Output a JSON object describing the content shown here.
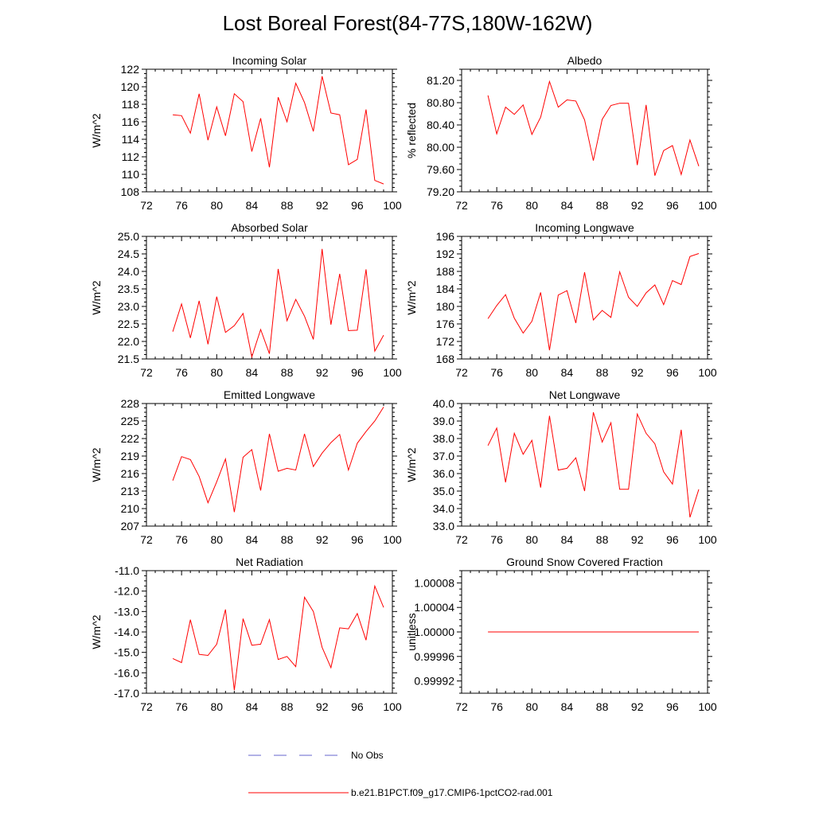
{
  "title": "Lost Boreal Forest(84-77S,180W-162W)",
  "colors": {
    "series": "#ff0000",
    "obs": "#6666cc",
    "axis": "#000000"
  },
  "legend": {
    "obs_label": "No Obs",
    "model_label": "b.e21.B1PCT.f09_g17.CMIP6-1pctCO2-rad.001"
  },
  "chart_data": [
    {
      "type": "line",
      "title": "Incoming Solar",
      "ylabel": "W/m^2",
      "xlim": [
        72,
        100
      ],
      "ylim": [
        108,
        122
      ],
      "xticks": [
        72,
        76,
        80,
        84,
        88,
        92,
        96,
        100
      ],
      "yticks": [
        "108",
        "110",
        "112",
        "114",
        "116",
        "118",
        "120",
        "122"
      ],
      "x": [
        75,
        76,
        77,
        78,
        79,
        80,
        81,
        82,
        83,
        84,
        85,
        86,
        87,
        88,
        89,
        90,
        91,
        92,
        93,
        94,
        95,
        96,
        97,
        98,
        99
      ],
      "series": [
        {
          "name": "b.e21.B1PCT.f09_g17.CMIP6-1pctCO2-rad.001",
          "values": [
            116.8,
            116.7,
            114.7,
            119.2,
            113.9,
            117.7,
            114.4,
            119.2,
            118.3,
            112.6,
            116.4,
            110.8,
            118.8,
            116.0,
            120.4,
            118.2,
            114.9,
            121.2,
            117.0,
            116.8,
            111.1,
            111.7,
            117.4,
            109.3,
            108.9
          ]
        }
      ]
    },
    {
      "type": "line",
      "title": "Albedo",
      "ylabel": "% reflected",
      "xlim": [
        72,
        100
      ],
      "ylim": [
        79.2,
        81.4
      ],
      "xticks": [
        72,
        76,
        80,
        84,
        88,
        92,
        96,
        100
      ],
      "yticks": [
        "79.20",
        "79.60",
        "80.00",
        "80.40",
        "80.80",
        "81.20"
      ],
      "x": [
        75,
        76,
        77,
        78,
        79,
        80,
        81,
        82,
        83,
        84,
        85,
        86,
        87,
        88,
        89,
        90,
        91,
        92,
        93,
        94,
        95,
        96,
        97,
        98,
        99
      ],
      "series": [
        {
          "name": "b.e21.B1PCT.f09_g17.CMIP6-1pctCO2-rad.001",
          "values": [
            80.93,
            80.24,
            80.72,
            80.59,
            80.76,
            80.23,
            80.54,
            81.18,
            80.72,
            80.85,
            80.83,
            80.49,
            79.76,
            80.5,
            80.75,
            80.79,
            80.79,
            79.68,
            80.76,
            79.49,
            79.94,
            80.03,
            79.51,
            80.13,
            79.66
          ]
        }
      ]
    },
    {
      "type": "line",
      "title": "Absorbed Solar",
      "ylabel": "W/m^2",
      "xlim": [
        72,
        100
      ],
      "ylim": [
        21.5,
        25.0
      ],
      "xticks": [
        72,
        76,
        80,
        84,
        88,
        92,
        96,
        100
      ],
      "yticks": [
        "21.5",
        "22.0",
        "22.5",
        "23.0",
        "23.5",
        "24.0",
        "24.5",
        "25.0"
      ],
      "x": [
        75,
        76,
        77,
        78,
        79,
        80,
        81,
        82,
        83,
        84,
        85,
        86,
        87,
        88,
        89,
        90,
        91,
        92,
        93,
        94,
        95,
        96,
        97,
        98,
        99
      ],
      "series": [
        {
          "name": "b.e21.B1PCT.f09_g17.CMIP6-1pctCO2-rad.001",
          "values": [
            22.28,
            23.07,
            22.1,
            23.16,
            21.92,
            23.28,
            22.26,
            22.45,
            22.8,
            21.56,
            22.34,
            21.65,
            24.07,
            22.59,
            23.2,
            22.72,
            22.06,
            24.64,
            22.48,
            23.93,
            22.31,
            22.32,
            24.06,
            21.72,
            22.18
          ]
        }
      ]
    },
    {
      "type": "line",
      "title": "Incoming Longwave",
      "ylabel": "W/m^2",
      "xlim": [
        72,
        100
      ],
      "ylim": [
        168,
        196
      ],
      "xticks": [
        72,
        76,
        80,
        84,
        88,
        92,
        96,
        100
      ],
      "yticks": [
        "168",
        "172",
        "176",
        "180",
        "184",
        "188",
        "192",
        "196"
      ],
      "x": [
        75,
        76,
        77,
        78,
        79,
        80,
        81,
        82,
        83,
        84,
        85,
        86,
        87,
        88,
        89,
        90,
        91,
        92,
        93,
        94,
        95,
        96,
        97,
        98,
        99
      ],
      "series": [
        {
          "name": "b.e21.B1PCT.f09_g17.CMIP6-1pctCO2-rad.001",
          "values": [
            177.2,
            180.2,
            182.7,
            177.3,
            173.9,
            176.6,
            183.2,
            170.0,
            182.6,
            183.6,
            176.2,
            187.8,
            176.9,
            179.1,
            177.5,
            187.9,
            182.1,
            180.0,
            183.1,
            184.9,
            180.4,
            185.9,
            185.0,
            191.4,
            192.1
          ]
        }
      ]
    },
    {
      "type": "line",
      "title": "Emitted Longwave",
      "ylabel": "W/m^2",
      "xlim": [
        72,
        100
      ],
      "ylim": [
        207,
        228
      ],
      "xticks": [
        72,
        76,
        80,
        84,
        88,
        92,
        96,
        100
      ],
      "yticks": [
        "207",
        "210",
        "213",
        "216",
        "219",
        "222",
        "225",
        "228"
      ],
      "x": [
        75,
        76,
        77,
        78,
        79,
        80,
        81,
        82,
        83,
        84,
        85,
        86,
        87,
        88,
        89,
        90,
        91,
        92,
        93,
        94,
        95,
        96,
        97,
        98,
        99
      ],
      "series": [
        {
          "name": "b.e21.B1PCT.f09_g17.CMIP6-1pctCO2-rad.001",
          "values": [
            214.8,
            218.9,
            218.4,
            215.5,
            211.0,
            214.6,
            218.5,
            209.4,
            218.8,
            220.1,
            213.1,
            222.8,
            216.4,
            216.9,
            216.6,
            222.8,
            217.2,
            219.5,
            221.3,
            222.7,
            216.6,
            221.2,
            223.2,
            225.0,
            227.4
          ]
        }
      ]
    },
    {
      "type": "line",
      "title": "Net Longwave",
      "ylabel": "W/m^2",
      "xlim": [
        72,
        100
      ],
      "ylim": [
        33.0,
        40.0
      ],
      "xticks": [
        72,
        76,
        80,
        84,
        88,
        92,
        96,
        100
      ],
      "yticks": [
        "33.0",
        "34.0",
        "35.0",
        "36.0",
        "37.0",
        "38.0",
        "39.0",
        "40.0"
      ],
      "x": [
        75,
        76,
        77,
        78,
        79,
        80,
        81,
        82,
        83,
        84,
        85,
        86,
        87,
        88,
        89,
        90,
        91,
        92,
        93,
        94,
        95,
        96,
        97,
        98,
        99
      ],
      "series": [
        {
          "name": "b.e21.B1PCT.f09_g17.CMIP6-1pctCO2-rad.001",
          "values": [
            37.6,
            38.6,
            35.5,
            38.3,
            37.1,
            37.9,
            35.2,
            39.3,
            36.2,
            36.3,
            36.9,
            35.0,
            39.5,
            37.8,
            38.9,
            35.1,
            35.1,
            39.4,
            38.3,
            37.7,
            36.1,
            35.4,
            38.5,
            33.5,
            35.1
          ]
        }
      ]
    },
    {
      "type": "line",
      "title": "Net Radiation",
      "ylabel": "W/m^2",
      "xlim": [
        72,
        100
      ],
      "ylim": [
        -17.0,
        -11.0
      ],
      "xticks": [
        72,
        76,
        80,
        84,
        88,
        92,
        96,
        100
      ],
      "yticks": [
        "-17.0",
        "-16.0",
        "-15.0",
        "-14.0",
        "-13.0",
        "-12.0",
        "-11.0"
      ],
      "x": [
        75,
        76,
        77,
        78,
        79,
        80,
        81,
        82,
        83,
        84,
        85,
        86,
        87,
        88,
        89,
        90,
        91,
        92,
        93,
        94,
        95,
        96,
        97,
        98,
        99
      ],
      "series": [
        {
          "name": "b.e21.B1PCT.f09_g17.CMIP6-1pctCO2-rad.001",
          "values": [
            -15.3,
            -15.5,
            -13.4,
            -15.1,
            -15.15,
            -14.6,
            -12.9,
            -16.85,
            -13.35,
            -14.65,
            -14.6,
            -13.4,
            -15.35,
            -15.2,
            -15.7,
            -12.3,
            -13.0,
            -14.75,
            -15.75,
            -13.8,
            -13.85,
            -13.1,
            -14.4,
            -11.75,
            -12.8
          ]
        }
      ]
    },
    {
      "type": "line",
      "title": "Ground Snow Covered Fraction",
      "ylabel": "unitless",
      "xlim": [
        72,
        100
      ],
      "ylim": [
        0.9999,
        1.0001
      ],
      "xticks": [
        72,
        76,
        80,
        84,
        88,
        92,
        96,
        100
      ],
      "yticks": [
        "0.99992",
        "0.99996",
        "1.00000",
        "1.00004",
        "1.00008"
      ],
      "x": [
        75,
        76,
        77,
        78,
        79,
        80,
        81,
        82,
        83,
        84,
        85,
        86,
        87,
        88,
        89,
        90,
        91,
        92,
        93,
        94,
        95,
        96,
        97,
        98,
        99
      ],
      "series": [
        {
          "name": "b.e21.B1PCT.f09_g17.CMIP6-1pctCO2-rad.001",
          "values": [
            1,
            1,
            1,
            1,
            1,
            1,
            1,
            1,
            1,
            1,
            1,
            1,
            1,
            1,
            1,
            1,
            1,
            1,
            1,
            1,
            1,
            1,
            1,
            1,
            1
          ]
        }
      ]
    }
  ]
}
